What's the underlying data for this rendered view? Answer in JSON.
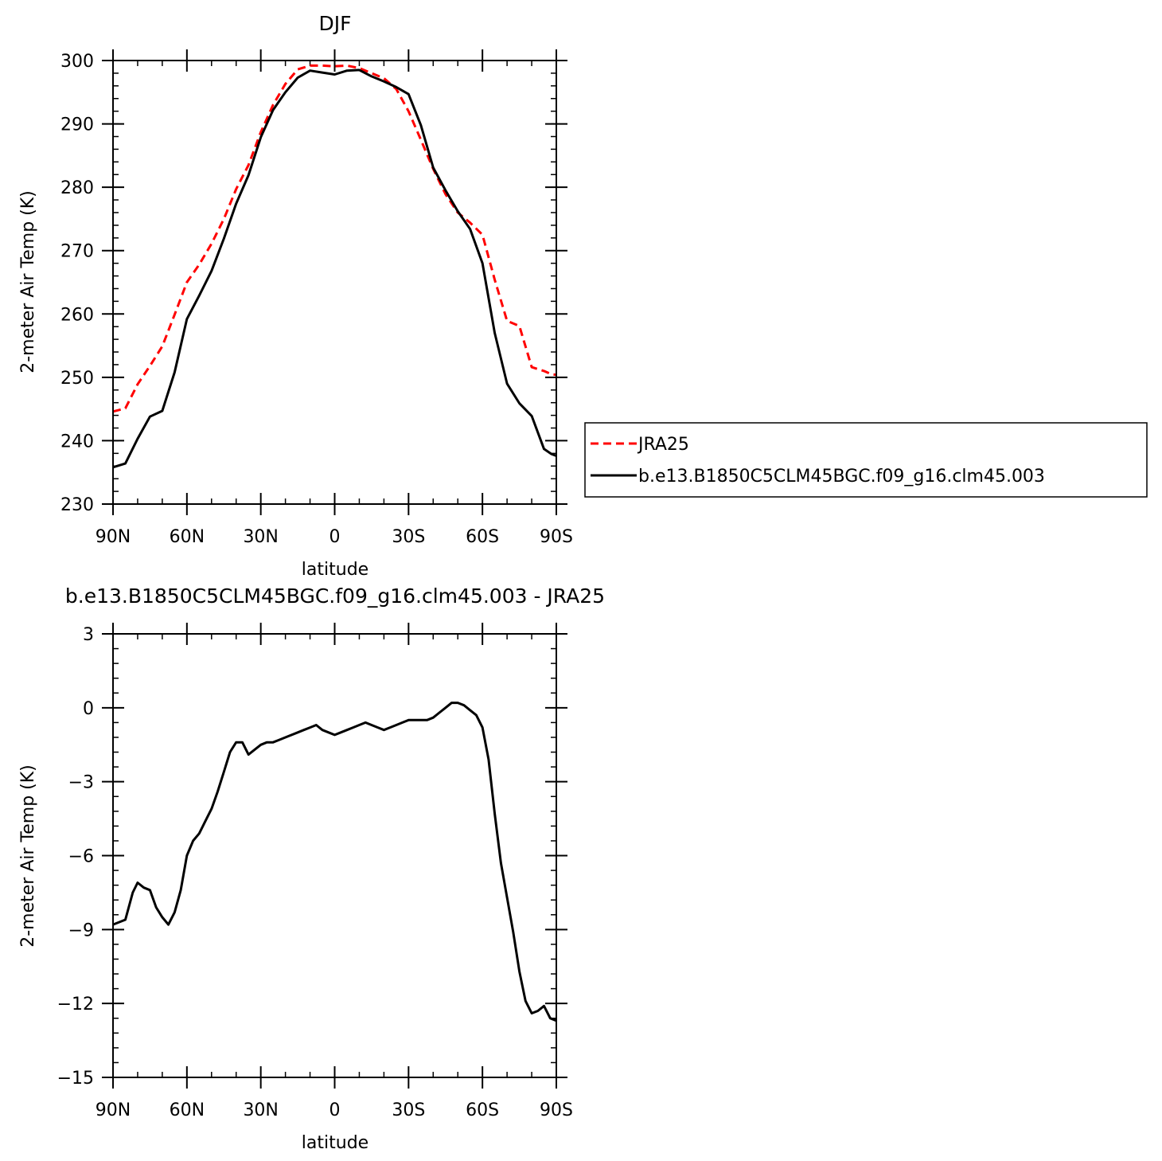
{
  "chart_data": [
    {
      "type": "line",
      "title": "DJF",
      "xlabel": "latitude",
      "ylabel": "2-meter Air Temp (K)",
      "xlim": [
        90,
        -90
      ],
      "ylim": [
        230,
        300
      ],
      "xticks": [
        90,
        60,
        30,
        0,
        -30,
        -60,
        -90
      ],
      "xtick_labels": [
        "90N",
        "60N",
        "30N",
        "0",
        "30S",
        "60S",
        "90S"
      ],
      "yticks": [
        230,
        240,
        250,
        260,
        270,
        280,
        290,
        300
      ],
      "ytick_labels": [
        "230",
        "240",
        "250",
        "260",
        "270",
        "280",
        "290",
        "300"
      ],
      "legend_position": "right",
      "series": [
        {
          "name": "JRA25",
          "color": "#ff0000",
          "style": "dashed",
          "x": [
            90,
            85,
            80,
            75,
            70,
            65,
            60,
            55,
            50,
            45,
            40,
            35,
            30,
            25,
            20,
            15,
            10,
            5,
            0,
            -5,
            -10,
            -15,
            -20,
            -25,
            -30,
            -35,
            -40,
            -45,
            -50,
            -55,
            -60,
            -65,
            -70,
            -75,
            -80,
            -85,
            -88,
            -90
          ],
          "values": [
            244.6,
            245.1,
            248.9,
            251.8,
            254.9,
            259.9,
            265.0,
            267.8,
            271.1,
            275.0,
            279.7,
            283.5,
            288.7,
            293.0,
            296.3,
            298.6,
            299.2,
            299.2,
            299.1,
            299.2,
            298.8,
            298.0,
            297.2,
            295.5,
            292.0,
            287.5,
            282.9,
            278.9,
            276.0,
            274.4,
            272.5,
            265.4,
            258.9,
            258.1,
            251.6,
            251.0,
            250.5,
            250.4
          ]
        },
        {
          "name": "b.e13.B1850C5CLM45BGC.f09_g16.clm45.003",
          "color": "#000000",
          "style": "solid",
          "x": [
            90,
            85,
            80,
            75,
            70,
            65,
            60,
            55,
            50,
            45,
            40,
            35,
            30,
            25,
            20,
            15,
            10,
            5,
            0,
            -5,
            -10,
            -15,
            -20,
            -25,
            -30,
            -35,
            -40,
            -45,
            -50,
            -55,
            -60,
            -65,
            -70,
            -75,
            -80,
            -85,
            -88,
            -90
          ],
          "values": [
            235.8,
            236.4,
            240.3,
            243.8,
            244.7,
            250.8,
            259.2,
            262.9,
            266.8,
            271.9,
            277.4,
            281.9,
            287.9,
            292.2,
            295.0,
            297.3,
            298.4,
            298.1,
            297.8,
            298.4,
            298.5,
            297.5,
            296.7,
            295.8,
            294.7,
            289.8,
            283.1,
            279.5,
            276.2,
            273.4,
            268.0,
            257.0,
            249.0,
            245.9,
            243.9,
            238.7,
            237.9,
            237.6
          ]
        }
      ]
    },
    {
      "type": "line",
      "title": "b.e13.B1850C5CLM45BGC.f09_g16.clm45.003 - JRA25",
      "xlabel": "latitude",
      "ylabel": "2-meter Air Temp (K)",
      "xlim": [
        90,
        -90
      ],
      "ylim": [
        -15,
        3
      ],
      "xticks": [
        90,
        60,
        30,
        0,
        -30,
        -60,
        -90
      ],
      "xtick_labels": [
        "90N",
        "60N",
        "30N",
        "0",
        "30S",
        "60S",
        "90S"
      ],
      "yticks": [
        -15,
        -12,
        -9,
        -6,
        -3,
        0,
        3
      ],
      "ytick_labels": [
        "−15",
        "−12",
        "−9",
        "−6",
        "−3",
        "0",
        "3"
      ],
      "series": [
        {
          "color": "#000000",
          "style": "solid",
          "x": [
            90,
            85,
            82,
            80,
            77.5,
            75,
            72.5,
            70,
            67.5,
            65,
            62.5,
            60,
            57.5,
            55,
            52.5,
            50,
            47.5,
            45,
            42.5,
            40,
            37.5,
            35,
            30,
            27.5,
            25,
            22.5,
            20,
            15,
            12.5,
            10,
            7.5,
            5,
            2.5,
            0,
            -2.5,
            -5,
            -7.5,
            -10,
            -12.5,
            -15,
            -17.5,
            -20,
            -22.5,
            -25,
            -27.5,
            -30,
            -32.5,
            -35,
            -37.5,
            -40,
            -42.5,
            -45,
            -47.5,
            -50,
            -52.5,
            -55,
            -57.5,
            -60,
            -62.5,
            -65,
            -67.5,
            -70,
            -72.5,
            -75,
            -77.5,
            -80,
            -82.5,
            -85,
            -87.5,
            -90
          ],
          "values": [
            -8.8,
            -8.6,
            -7.5,
            -7.1,
            -7.3,
            -7.4,
            -8.1,
            -8.5,
            -8.8,
            -8.3,
            -7.4,
            -6.0,
            -5.4,
            -5.1,
            -4.6,
            -4.1,
            -3.4,
            -2.6,
            -1.8,
            -1.4,
            -1.4,
            -1.9,
            -1.5,
            -1.4,
            -1.4,
            -1.3,
            -1.2,
            -1.0,
            -0.9,
            -0.8,
            -0.7,
            -0.9,
            -1.0,
            -1.1,
            -1.0,
            -0.9,
            -0.8,
            -0.7,
            -0.6,
            -0.7,
            -0.8,
            -0.9,
            -0.8,
            -0.7,
            -0.6,
            -0.5,
            -0.5,
            -0.5,
            -0.5,
            -0.4,
            -0.2,
            0.0,
            0.2,
            0.2,
            0.1,
            -0.1,
            -0.3,
            -0.8,
            -2.1,
            -4.3,
            -6.3,
            -7.7,
            -9.1,
            -10.7,
            -11.9,
            -12.4,
            -12.3,
            -12.1,
            -12.6,
            -12.7
          ]
        }
      ]
    }
  ]
}
